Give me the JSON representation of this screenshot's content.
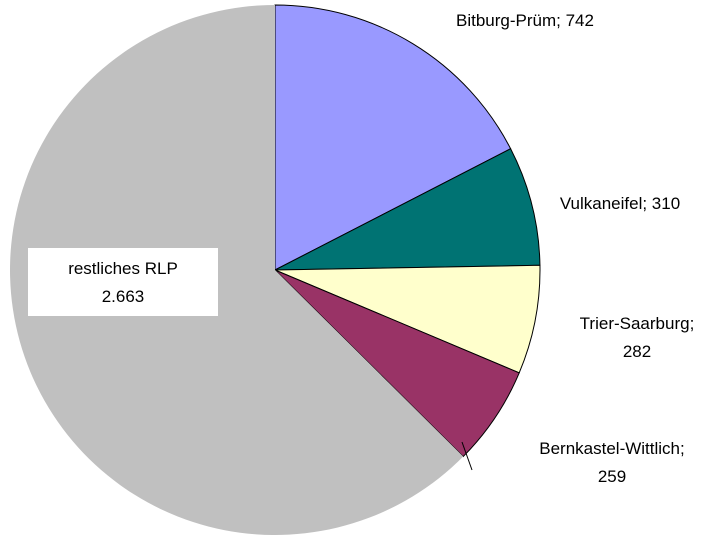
{
  "chart_data": {
    "type": "pie",
    "values": [
      742,
      310,
      282,
      259,
      2663
    ],
    "value_labels": [
      "Bitburg-Prüm; 742",
      "Vulkaneifel;  310",
      "Trier-Saarburg;\n282",
      "Bernkastel-Wittlich;\n259",
      "restliches RLP\n2.663"
    ],
    "colors": [
      "#9999ff",
      "#007373",
      "#ffffcc",
      "#993366",
      "#c0c0c0"
    ]
  }
}
